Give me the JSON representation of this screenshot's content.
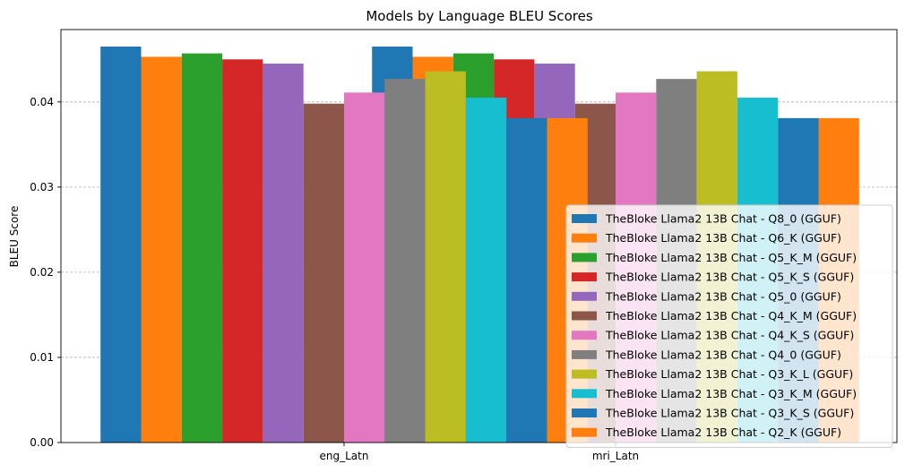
{
  "chart_data": {
    "type": "bar",
    "title": "Models by Language BLEU Scores",
    "xlabel": "",
    "ylabel": "BLEU Score",
    "categories": [
      "eng_Latn",
      "mri_Latn"
    ],
    "ylim": [
      0,
      0.0485
    ],
    "yticks": [
      0.0,
      0.01,
      0.02,
      0.03,
      0.04
    ],
    "ytick_labels": [
      "0.00",
      "0.01",
      "0.02",
      "0.03",
      "0.04"
    ],
    "grid": "y-dashed",
    "legend_position": "lower-right",
    "series": [
      {
        "name": "TheBloke Llama2 13B Chat - Q8_0 (GGUF)",
        "color": "#1f77b4",
        "values": [
          0.0465,
          0.0465
        ]
      },
      {
        "name": "TheBloke Llama2 13B Chat - Q6_K (GGUF)",
        "color": "#ff7f0e",
        "values": [
          0.0453,
          0.0453
        ]
      },
      {
        "name": "TheBloke Llama2 13B Chat - Q5_K_M (GGUF)",
        "color": "#2ca02c",
        "values": [
          0.0457,
          0.0457
        ]
      },
      {
        "name": "TheBloke Llama2 13B Chat - Q5_K_S (GGUF)",
        "color": "#d62728",
        "values": [
          0.045,
          0.045
        ]
      },
      {
        "name": "TheBloke Llama2 13B Chat - Q5_0 (GGUF)",
        "color": "#9467bd",
        "values": [
          0.0445,
          0.0445
        ]
      },
      {
        "name": "TheBloke Llama2 13B Chat - Q4_K_M (GGUF)",
        "color": "#8c564b",
        "values": [
          0.0398,
          0.0398
        ]
      },
      {
        "name": "TheBloke Llama2 13B Chat - Q4_K_S (GGUF)",
        "color": "#e377c2",
        "values": [
          0.0411,
          0.0411
        ]
      },
      {
        "name": "TheBloke Llama2 13B Chat - Q4_0 (GGUF)",
        "color": "#7f7f7f",
        "values": [
          0.0427,
          0.0427
        ]
      },
      {
        "name": "TheBloke Llama2 13B Chat - Q3_K_L (GGUF)",
        "color": "#bcbd22",
        "values": [
          0.0436,
          0.0436
        ]
      },
      {
        "name": "TheBloke Llama2 13B Chat - Q3_K_M (GGUF)",
        "color": "#17becf",
        "values": [
          0.0405,
          0.0405
        ]
      },
      {
        "name": "TheBloke Llama2 13B Chat - Q3_K_S (GGUF)",
        "color": "#1f77b4",
        "values": [
          0.0381,
          0.0381
        ]
      },
      {
        "name": "TheBloke Llama2 13B Chat - Q2_K (GGUF)",
        "color": "#ff7f0e",
        "values": [
          0.0381,
          0.0381
        ]
      }
    ]
  }
}
